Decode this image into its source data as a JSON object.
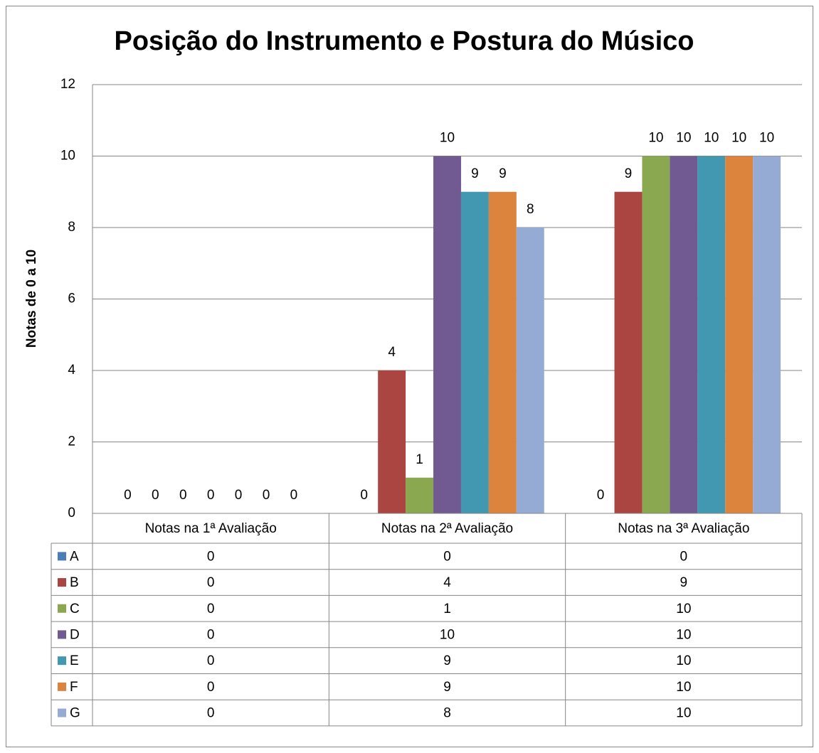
{
  "chart_data": {
    "type": "bar",
    "title": "Posição do Instrumento e Postura do Músico",
    "y_label": "Notas  de 0 a 10",
    "categories": [
      "Notas na 1ª Avaliação",
      "Notas na 2ª Avaliação",
      "Notas na 3ª Avaliação"
    ],
    "series": [
      {
        "name": "A",
        "color": "#4a7ebb",
        "values": [
          0,
          0,
          0
        ]
      },
      {
        "name": "B",
        "color": "#ab4542",
        "values": [
          0,
          4,
          9
        ]
      },
      {
        "name": "C",
        "color": "#8aa84f",
        "values": [
          0,
          1,
          10
        ]
      },
      {
        "name": "D",
        "color": "#715991",
        "values": [
          0,
          10,
          10
        ]
      },
      {
        "name": "E",
        "color": "#4298b0",
        "values": [
          0,
          9,
          10
        ]
      },
      {
        "name": "F",
        "color": "#dc833e",
        "values": [
          0,
          9,
          10
        ]
      },
      {
        "name": "G",
        "color": "#95abd4",
        "values": [
          0,
          8,
          10
        ]
      }
    ],
    "ylim": [
      0,
      12
    ],
    "yticks": [
      0,
      2,
      4,
      6,
      8,
      10,
      12
    ],
    "grid": true,
    "data_labels": true,
    "data_table": true
  }
}
